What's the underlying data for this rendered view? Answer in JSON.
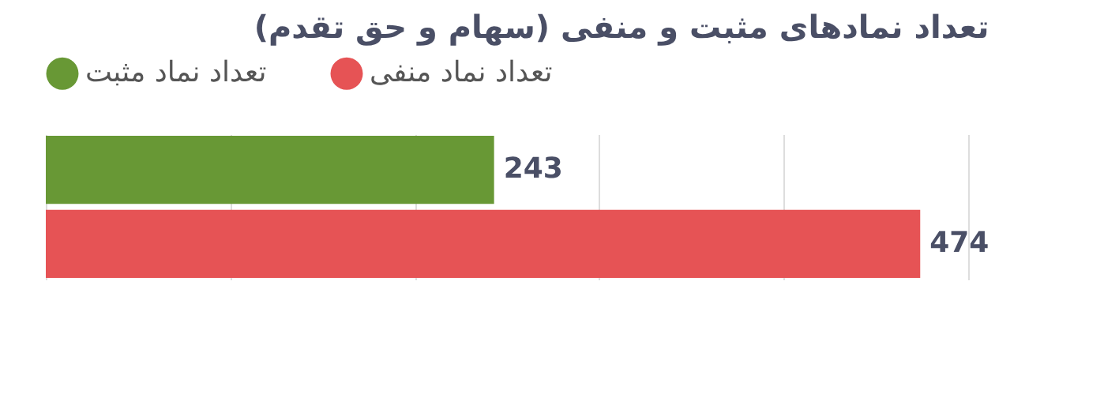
{
  "chart_data": {
    "type": "bar",
    "orientation": "horizontal",
    "title": "تعداد نمادهای مثبت و منفی (سهام و حق تقدم)",
    "categories": [
      null
    ],
    "series": [
      {
        "name": "تعداد نماد مثبت",
        "color": "#689835",
        "values": [
          243
        ]
      },
      {
        "name": "تعداد نماد منفی",
        "color": "#e65355",
        "values": [
          474
        ]
      }
    ],
    "xlim": [
      0,
      500
    ],
    "xticks": [
      {
        "value": 0,
        "label": null
      },
      {
        "value": 100,
        "label": null
      },
      {
        "value": 200,
        "label": null
      },
      {
        "value": 300,
        "label": null
      },
      {
        "value": 400,
        "label": null
      },
      {
        "value": 500,
        "label": null
      }
    ],
    "grid": "x",
    "legend": "top",
    "data_labels": true
  }
}
